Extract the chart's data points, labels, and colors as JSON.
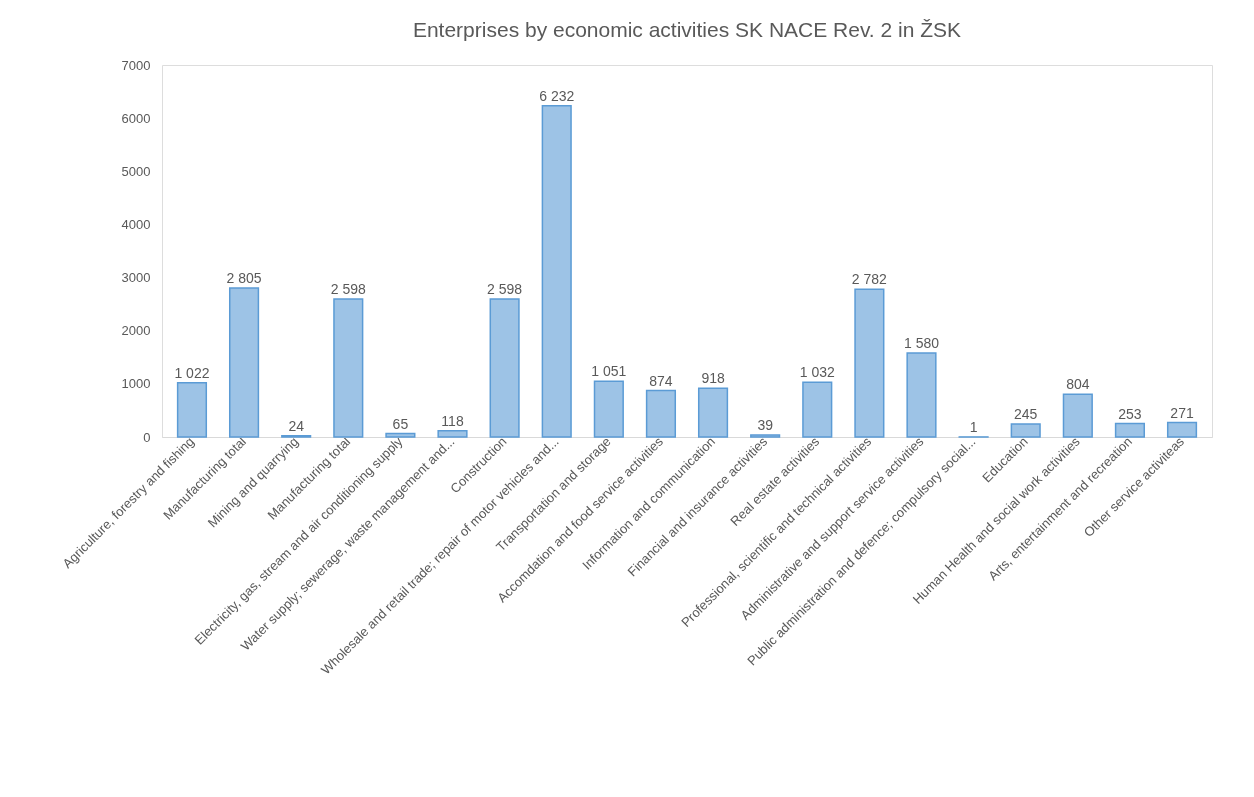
{
  "chart_data": {
    "type": "bar",
    "title": "Enterprises  by economic  activities  SK NACE  Rev. 2 in ŽSK",
    "categories": [
      "Agriculture, forestry and fishing",
      "Manufacturing total",
      "Mining and quarrying",
      "Manufacturing total",
      "Electricity, gas, stream and air conditioning supply",
      "Water supply; sewerage, waste management and...",
      "Construction",
      "Wholesale and retail trade; repair of motor vehicles and...",
      "Transportation and storage",
      "Accomdation and food service activities",
      "Information and communication",
      "Financial and insurance activities",
      "Real estate activities",
      "Professional, scientific and technical activities",
      "Administrative and support service activities",
      "Public administration and defence; compulsory social...",
      "Education",
      "Human Health and social work activities",
      "Arts, entertainment and recreation",
      "Other service activiteas"
    ],
    "values": [
      1022,
      2805,
      24,
      2598,
      65,
      118,
      2598,
      6232,
      1051,
      874,
      918,
      39,
      1032,
      2782,
      1580,
      1,
      245,
      804,
      253,
      271
    ],
    "value_labels": [
      "1 022",
      "2 805",
      "24",
      "2 598",
      "65",
      "118",
      "2 598",
      "6 232",
      "1 051",
      "874",
      "918",
      "39",
      "1 032",
      "2 782",
      "1 580",
      "1",
      "245",
      "804",
      "253",
      "271"
    ],
    "color": "#9dc3e6",
    "ylim": [
      0,
      7000
    ],
    "yticks": [
      0,
      1000,
      2000,
      3000,
      4000,
      5000,
      6000,
      7000
    ],
    "grid": false
  }
}
